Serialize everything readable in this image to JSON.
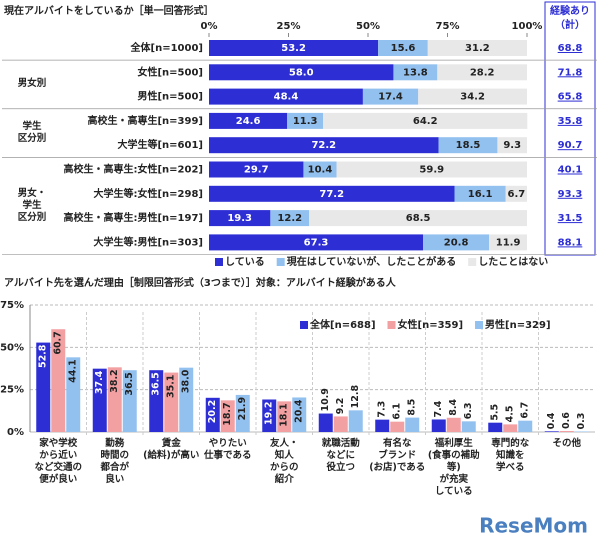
{
  "chart_data": [
    {
      "type": "bar",
      "orientation": "horizontal",
      "stacked": true,
      "title": "現在アルバイトをしているか［単一回答形式］",
      "groups": [
        {
          "categories": [
            "全体[n=1000]"
          ]
        },
        {
          "label": "男女別",
          "categories": [
            "女性[n=500]",
            "男性[n=500]"
          ]
        },
        {
          "label": "学生\n区分別",
          "categories": [
            "高校生・高専生[n=399]",
            "大学生等[n=601]"
          ]
        },
        {
          "label": "男女・\n学生\n区分別",
          "categories": [
            "高校生・高専生:女性[n=202]",
            "大学生等:女性[n=298]",
            "高校生・高専生:男性[n=197]",
            "大学生等:男性[n=303]"
          ]
        }
      ],
      "series": [
        {
          "name": "している",
          "color": "#2d2ed4",
          "values": [
            53.2,
            58.0,
            48.4,
            24.6,
            72.2,
            29.7,
            77.2,
            19.3,
            67.3
          ],
          "value_labels": [
            "53.2",
            "58.0",
            "48.4",
            "24.6",
            "72.2",
            "29.7",
            "77.2",
            "19.3",
            "67.3"
          ]
        },
        {
          "name": "現在はしていないが、したことがある",
          "color": "#93c1ef",
          "values": [
            15.6,
            13.8,
            17.4,
            11.3,
            18.5,
            10.4,
            16.1,
            12.2,
            20.8
          ]
        },
        {
          "name": "したことはない",
          "color": "#e8e8e8",
          "values": [
            31.2,
            28.2,
            34.2,
            64.2,
            9.3,
            59.9,
            6.7,
            68.5,
            11.9
          ]
        }
      ],
      "totals": {
        "title": [
          "経験あり",
          "（計）"
        ],
        "values": [
          68.8,
          71.8,
          65.8,
          35.8,
          90.7,
          40.1,
          93.3,
          31.5,
          88.1
        ]
      },
      "xlim": [
        0,
        100
      ],
      "xticks": [
        {
          "value": 0,
          "label": "0%"
        },
        {
          "value": 25,
          "label": "25%"
        },
        {
          "value": 50,
          "label": "50%"
        },
        {
          "value": 75,
          "label": "75%"
        },
        {
          "value": 100,
          "label": "100%"
        }
      ]
    },
    {
      "type": "bar",
      "orientation": "vertical",
      "title": "アルバイト先を選んだ理由［制限回答形式（3つまで）］対象：アルバイト経験がある人",
      "categories": [
        "家や学校\nから近い\nなど交通の\n便が良い",
        "勤務\n時間の\n都合が\n良い",
        "賃金\n(給料)が高い",
        "やりたい\n仕事である",
        "友人・\n知人\nからの\n紹介",
        "就職活動\nなどに\n役立つ",
        "有名な\nブランド\n(お店)である",
        "福利厚生\n(食事の補助等)\nが充実\nしている",
        "専門的な\n知識を\n学べる",
        "その他"
      ],
      "series": [
        {
          "name": "全体[n=688]",
          "color": "#2d2ed4",
          "values": [
            52.8,
            37.4,
            36.5,
            20.2,
            19.2,
            10.9,
            7.3,
            7.4,
            5.5,
            0.4
          ]
        },
        {
          "name": "女性[n=359]",
          "color": "#f3a0a3",
          "values": [
            60.7,
            38.2,
            35.1,
            18.7,
            18.1,
            9.2,
            6.1,
            8.4,
            4.5,
            0.6
          ]
        },
        {
          "name": "男性[n=329]",
          "color": "#93c1ef",
          "values": [
            44.1,
            36.5,
            38.0,
            21.9,
            20.4,
            12.8,
            8.5,
            6.3,
            6.7,
            0.3
          ],
          "value_labels": [
            "44.1",
            "36.5",
            "38.0",
            "21.9",
            "20.4",
            "12.8",
            "8.5",
            "6.3",
            "6.7",
            "0.3"
          ]
        }
      ],
      "ylim": [
        0,
        75
      ],
      "yticks": [
        {
          "value": 0,
          "label": "0%"
        },
        {
          "value": 25,
          "label": "25%"
        },
        {
          "value": 50,
          "label": "50%"
        },
        {
          "value": 75,
          "label": "75%"
        }
      ],
      "grid": true
    }
  ],
  "watermark": "ReseMom"
}
